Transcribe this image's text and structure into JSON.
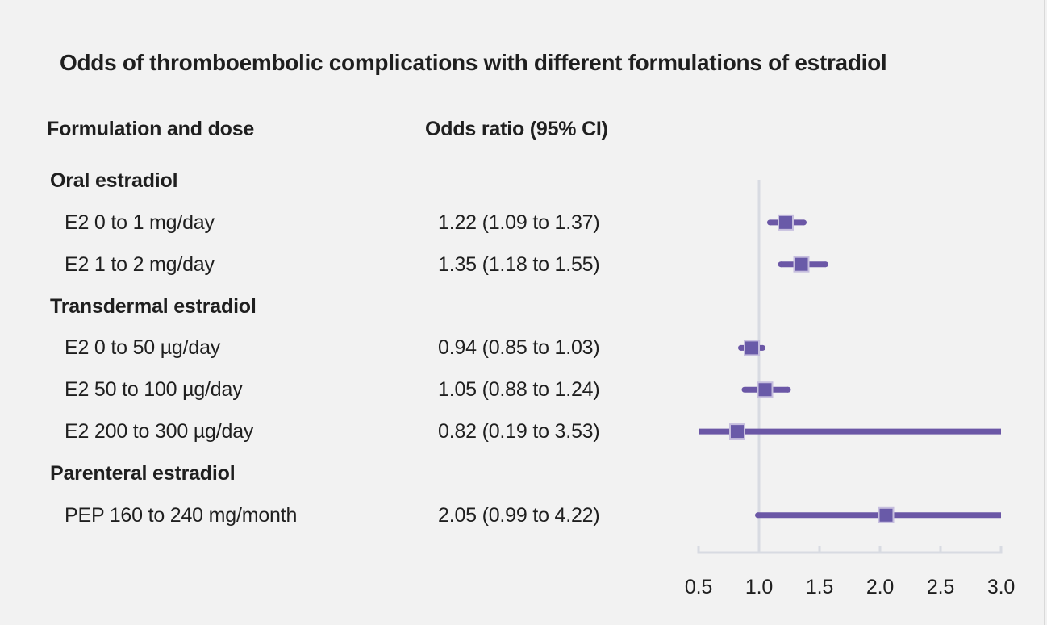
{
  "title": "Odds of thromboembolic complications with different formulations of estradiol",
  "headers": {
    "col1": "Formulation and dose",
    "col2": "Odds ratio (95% CI)"
  },
  "colors": {
    "background": "#f2f2f2",
    "text": "#1f1f1f",
    "axis_line": "#d8dbe2",
    "reference_line": "#d8dbe2",
    "ci_line": "#6b57a6",
    "marker_fill": "#695aa8",
    "marker_border": "#c6bede"
  },
  "chart_data": {
    "type": "forest",
    "title": "Odds of thromboembolic complications with different formulations of estradiol",
    "xlabel": "",
    "legend": "none",
    "axis": {
      "min": 0.5,
      "max": 3.0,
      "reference": 1.0,
      "ticks": [
        0.5,
        1.0,
        1.5,
        2.0,
        2.5,
        3.0
      ],
      "tick_labels": [
        "0.5",
        "1.0",
        "1.5",
        "2.0",
        "2.5",
        "3.0"
      ]
    },
    "rows": [
      {
        "type": "group",
        "label": "Oral estradiol"
      },
      {
        "type": "item",
        "label": "E2 0 to 1 mg/day",
        "or_text": "1.22 (1.09 to 1.37)",
        "or": 1.22,
        "ci_low": 1.09,
        "ci_high": 1.37
      },
      {
        "type": "item",
        "label": "E2 1 to 2 mg/day",
        "or_text": "1.35 (1.18 to 1.55)",
        "or": 1.35,
        "ci_low": 1.18,
        "ci_high": 1.55
      },
      {
        "type": "group",
        "label": "Transdermal estradiol"
      },
      {
        "type": "item",
        "label": "E2 0 to 50 µg/day",
        "or_text": "0.94 (0.85 to 1.03)",
        "or": 0.94,
        "ci_low": 0.85,
        "ci_high": 1.03
      },
      {
        "type": "item",
        "label": "E2 50 to 100 µg/day",
        "or_text": "1.05 (0.88 to 1.24)",
        "or": 1.05,
        "ci_low": 0.88,
        "ci_high": 1.24
      },
      {
        "type": "item",
        "label": "E2 200 to 300 µg/day",
        "or_text": "0.82 (0.19 to 3.53)",
        "or": 0.82,
        "ci_low": 0.19,
        "ci_high": 3.53
      },
      {
        "type": "group",
        "label": "Parenteral estradiol"
      },
      {
        "type": "item",
        "label": "PEP 160 to 240 mg/month",
        "or_text": "2.05 (0.99 to 4.22)",
        "or": 2.05,
        "ci_low": 0.99,
        "ci_high": 4.22
      }
    ]
  }
}
